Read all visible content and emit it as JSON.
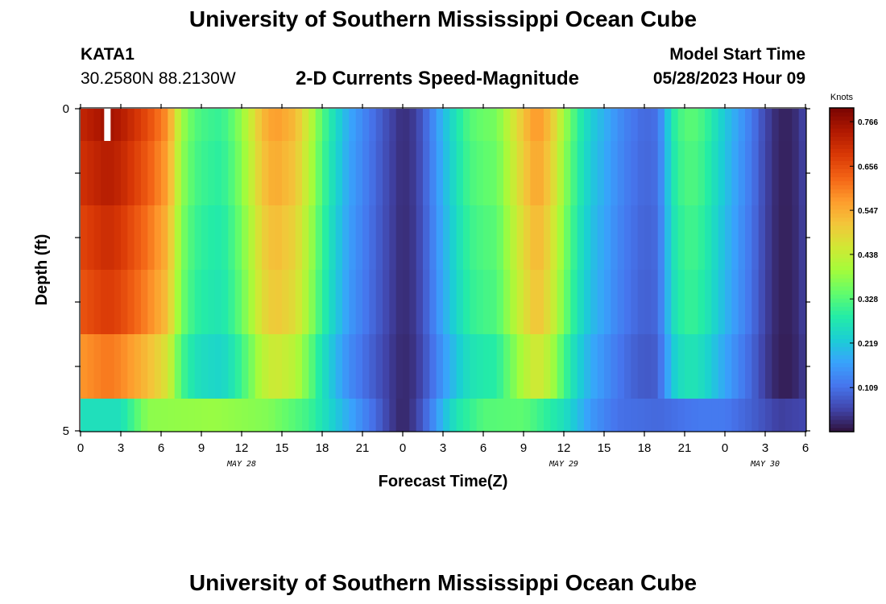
{
  "header": {
    "title": "University of Southern Mississippi Ocean Cube",
    "station": "KATA1",
    "coords": "30.2580N  88.2130W",
    "subtitle": "2-D Currents Speed-Magnitude",
    "model_start_label": "Model Start Time",
    "model_start_value": "05/28/2023 Hour 09"
  },
  "footer": {
    "title": "University of Southern Mississippi Ocean Cube"
  },
  "chart_data": {
    "type": "heatmap",
    "title": "2-D Currents Speed-Magnitude",
    "xlabel": "Forecast Time(Z)",
    "ylabel": "Depth (ft)",
    "x_tick_labels": [
      "0",
      "3",
      "6",
      "9",
      "12",
      "15",
      "18",
      "21",
      "0",
      "3",
      "6",
      "9",
      "12",
      "15",
      "18",
      "21",
      "0",
      "3",
      "6"
    ],
    "x_date_labels": [
      {
        "label": "MAY 28",
        "at_hour": 12
      },
      {
        "label": "MAY 29",
        "at_hour": 36
      },
      {
        "label": "MAY 30",
        "at_hour": 51
      }
    ],
    "x_range_hours": [
      0,
      54
    ],
    "x_start": "05/28/2023 00Z",
    "y_tick_labels": [
      "0",
      "5"
    ],
    "ylim": [
      0,
      5
    ],
    "depth_bins": [
      [
        0,
        0.5
      ],
      [
        0.5,
        1.5
      ],
      [
        1.5,
        2.5
      ],
      [
        2.5,
        3.5
      ],
      [
        3.5,
        4.5
      ],
      [
        4.5,
        5
      ]
    ],
    "colorbar": {
      "label": "Knots",
      "ticks": [
        "0.766",
        "0.656",
        "0.547",
        "0.438",
        "0.328",
        "0.219",
        "0.109"
      ],
      "tick_values": [
        0.766,
        0.656,
        0.547,
        0.438,
        0.328,
        0.219,
        0.109
      ],
      "vmin": 0.0,
      "vmax": 0.8,
      "colormap": [
        "#30123b",
        "#4145ab",
        "#4675ed",
        "#39a2fc",
        "#1bcfd4",
        "#24eca6",
        "#61fc6c",
        "#a4fc3b",
        "#d1e834",
        "#f3c63a",
        "#fe9b2d",
        "#f36315",
        "#d93806",
        "#b11901",
        "#7a0402"
      ]
    },
    "profile_knots": [
      {
        "t": 0,
        "v": 0.72
      },
      {
        "t": 1,
        "v": 0.74
      },
      {
        "t": 2,
        "v": 0.76
      },
      {
        "t": 3,
        "v": 0.74
      },
      {
        "t": 5,
        "v": 0.66
      },
      {
        "t": 6.5,
        "v": 0.58
      },
      {
        "t": 7.5,
        "v": 0.4
      },
      {
        "t": 8.5,
        "v": 0.33
      },
      {
        "t": 9.5,
        "v": 0.31
      },
      {
        "t": 10.5,
        "v": 0.3
      },
      {
        "t": 11.5,
        "v": 0.35
      },
      {
        "t": 12.5,
        "v": 0.43
      },
      {
        "t": 13.5,
        "v": 0.53
      },
      {
        "t": 14.5,
        "v": 0.57
      },
      {
        "t": 16,
        "v": 0.53
      },
      {
        "t": 17,
        "v": 0.44
      },
      {
        "t": 18,
        "v": 0.33
      },
      {
        "t": 19,
        "v": 0.25
      },
      {
        "t": 20,
        "v": 0.18
      },
      {
        "t": 21,
        "v": 0.14
      },
      {
        "t": 22,
        "v": 0.1
      },
      {
        "t": 23,
        "v": 0.06
      },
      {
        "t": 24,
        "v": 0.03
      },
      {
        "t": 25,
        "v": 0.05
      },
      {
        "t": 26,
        "v": 0.12
      },
      {
        "t": 27,
        "v": 0.2
      },
      {
        "t": 28,
        "v": 0.27
      },
      {
        "t": 29,
        "v": 0.33
      },
      {
        "t": 30,
        "v": 0.35
      },
      {
        "t": 31,
        "v": 0.36
      },
      {
        "t": 32,
        "v": 0.44
      },
      {
        "t": 33,
        "v": 0.52
      },
      {
        "t": 34,
        "v": 0.58
      },
      {
        "t": 35,
        "v": 0.52
      },
      {
        "t": 36,
        "v": 0.4
      },
      {
        "t": 37,
        "v": 0.3
      },
      {
        "t": 38,
        "v": 0.23
      },
      {
        "t": 39,
        "v": 0.19
      },
      {
        "t": 40,
        "v": 0.15
      },
      {
        "t": 41,
        "v": 0.12
      },
      {
        "t": 42,
        "v": 0.1
      },
      {
        "t": 43,
        "v": 0.11
      },
      {
        "t": 43.6,
        "v": 0.2
      },
      {
        "t": 44.4,
        "v": 0.31
      },
      {
        "t": 45.5,
        "v": 0.34
      },
      {
        "t": 46.5,
        "v": 0.31
      },
      {
        "t": 48,
        "v": 0.22
      },
      {
        "t": 49,
        "v": 0.17
      },
      {
        "t": 50,
        "v": 0.12
      },
      {
        "t": 51,
        "v": 0.06
      },
      {
        "t": 52,
        "v": 0.02
      },
      {
        "t": 53,
        "v": 0.02
      },
      {
        "t": 54,
        "v": 0.06
      }
    ],
    "depth_factors": [
      1.0,
      0.97,
      0.93,
      0.9,
      0.8,
      0.7
    ],
    "bottom_row_knots": [
      {
        "t": 0,
        "v": 0.26
      },
      {
        "t": 3,
        "v": 0.26
      },
      {
        "t": 5,
        "v": 0.38
      },
      {
        "t": 10,
        "v": 0.39
      },
      {
        "t": 14,
        "v": 0.37
      },
      {
        "t": 17,
        "v": 0.31
      },
      {
        "t": 20,
        "v": 0.18
      },
      {
        "t": 22,
        "v": 0.1
      },
      {
        "t": 23,
        "v": 0.05
      },
      {
        "t": 24,
        "v": 0.02
      },
      {
        "t": 25,
        "v": 0.05
      },
      {
        "t": 26,
        "v": 0.12
      },
      {
        "t": 27,
        "v": 0.2
      },
      {
        "t": 28,
        "v": 0.27
      },
      {
        "t": 30,
        "v": 0.33
      },
      {
        "t": 33,
        "v": 0.34
      },
      {
        "t": 36,
        "v": 0.26
      },
      {
        "t": 38,
        "v": 0.16
      },
      {
        "t": 40,
        "v": 0.11
      },
      {
        "t": 43,
        "v": 0.1
      },
      {
        "t": 46,
        "v": 0.12
      },
      {
        "t": 48,
        "v": 0.12
      },
      {
        "t": 50,
        "v": 0.09
      },
      {
        "t": 52,
        "v": 0.05
      },
      {
        "t": 54,
        "v": 0.06
      }
    ],
    "missing_cells": [
      {
        "hour": 2,
        "depth_row": 0,
        "color": "#ffffff"
      }
    ]
  }
}
